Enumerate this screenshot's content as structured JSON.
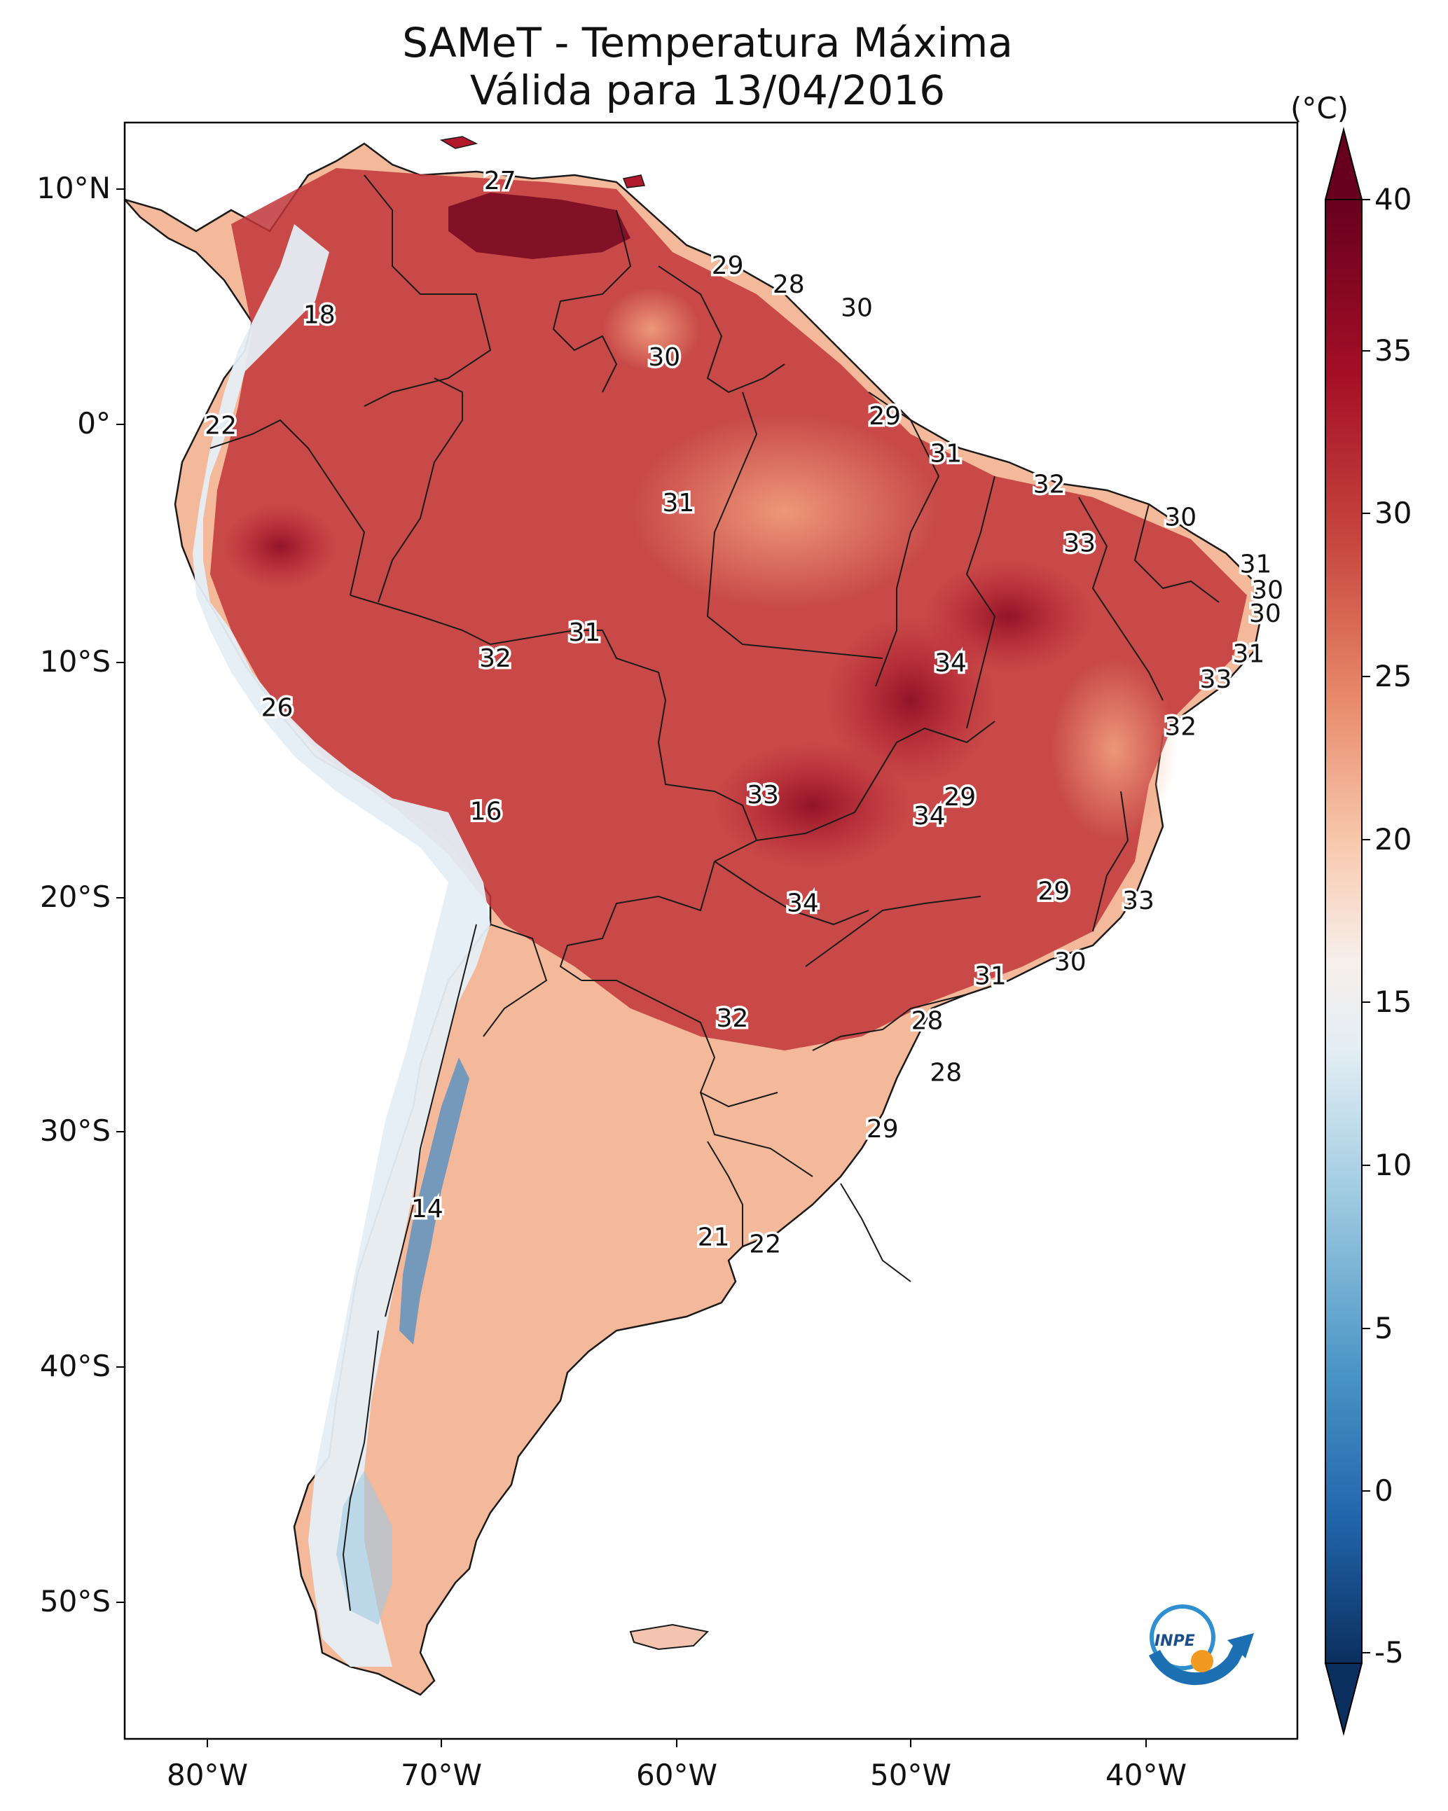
{
  "title": {
    "line1": "SAMeT - Temperatura Máxima",
    "line2": "Válida para 13/04/2016"
  },
  "axes": {
    "lat_labels": [
      "10°N",
      "0°",
      "10°S",
      "20°S",
      "30°S",
      "40°S",
      "50°S"
    ],
    "lon_labels": [
      "80°W",
      "70°W",
      "60°W",
      "50°W",
      "40°W"
    ]
  },
  "colorbar": {
    "unit": "(°C)",
    "ticks": [
      "40",
      "35",
      "30",
      "25",
      "20",
      "15",
      "10",
      "5",
      "0",
      "-5"
    ],
    "min": -7,
    "max": 42,
    "colors": [
      "#0b2f5e",
      "#2166ac",
      "#4393c3",
      "#92c5de",
      "#d1e5f0",
      "#f7f7f7",
      "#fddbc7",
      "#f4a582",
      "#d6604d",
      "#b2182b",
      "#67001f"
    ]
  },
  "annotations": [
    {
      "value": "27",
      "lat": 10.3,
      "lon": -67.5
    },
    {
      "value": "29",
      "lat": 6.7,
      "lon": -57.8
    },
    {
      "value": "28",
      "lat": 5.9,
      "lon": -55.2
    },
    {
      "value": "30",
      "lat": 4.9,
      "lon": -52.3
    },
    {
      "value": "18",
      "lat": 4.6,
      "lon": -75.2
    },
    {
      "value": "30",
      "lat": 2.8,
      "lon": -60.5
    },
    {
      "value": "22",
      "lat": -0.1,
      "lon": -79.4
    },
    {
      "value": "29",
      "lat": 0.3,
      "lon": -51.1
    },
    {
      "value": "31",
      "lat": -1.3,
      "lon": -48.5
    },
    {
      "value": "32",
      "lat": -2.6,
      "lon": -44.1
    },
    {
      "value": "31",
      "lat": -3.4,
      "lon": -59.9
    },
    {
      "value": "30",
      "lat": -4.0,
      "lon": -38.5
    },
    {
      "value": "33",
      "lat": -5.1,
      "lon": -42.8
    },
    {
      "value": "31",
      "lat": -6.0,
      "lon": -35.3
    },
    {
      "value": "30",
      "lat": -7.1,
      "lon": -34.8
    },
    {
      "value": "30",
      "lat": -8.1,
      "lon": -34.9
    },
    {
      "value": "31",
      "lat": -8.9,
      "lon": -63.9
    },
    {
      "value": "32",
      "lat": -10.0,
      "lon": -67.7
    },
    {
      "value": "34",
      "lat": -10.2,
      "lon": -48.3
    },
    {
      "value": "31",
      "lat": -9.8,
      "lon": -35.6
    },
    {
      "value": "33",
      "lat": -10.9,
      "lon": -37.0
    },
    {
      "value": "26",
      "lat": -12.1,
      "lon": -77.0
    },
    {
      "value": "32",
      "lat": -12.9,
      "lon": -38.5
    },
    {
      "value": "33",
      "lat": -15.8,
      "lon": -56.3
    },
    {
      "value": "29",
      "lat": -15.9,
      "lon": -47.9
    },
    {
      "value": "34",
      "lat": -16.7,
      "lon": -49.2
    },
    {
      "value": "16",
      "lat": -16.5,
      "lon": -68.1
    },
    {
      "value": "29",
      "lat": -19.9,
      "lon": -43.9
    },
    {
      "value": "33",
      "lat": -20.3,
      "lon": -40.3
    },
    {
      "value": "34",
      "lat": -20.4,
      "lon": -54.6
    },
    {
      "value": "30",
      "lat": -22.9,
      "lon": -43.2
    },
    {
      "value": "31",
      "lat": -23.5,
      "lon": -46.6
    },
    {
      "value": "28",
      "lat": -25.4,
      "lon": -49.3
    },
    {
      "value": "32",
      "lat": -25.3,
      "lon": -57.6
    },
    {
      "value": "28",
      "lat": -27.6,
      "lon": -48.5
    },
    {
      "value": "29",
      "lat": -30.0,
      "lon": -51.2
    },
    {
      "value": "14",
      "lat": -33.4,
      "lon": -70.6
    },
    {
      "value": "21",
      "lat": -34.6,
      "lon": -58.4
    },
    {
      "value": "22",
      "lat": -34.9,
      "lon": -56.2
    }
  ],
  "logo": {
    "text": "INPE"
  }
}
